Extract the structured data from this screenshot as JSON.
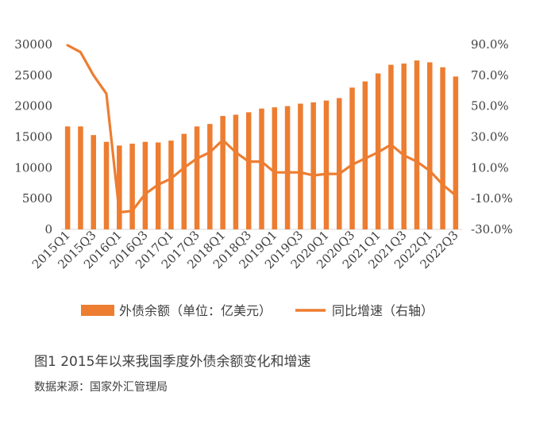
{
  "chart_data": {
    "type": "bar",
    "categories": [
      "2015Q1",
      "2015Q2",
      "2015Q3",
      "2015Q4",
      "2016Q1",
      "2016Q2",
      "2016Q3",
      "2016Q4",
      "2017Q1",
      "2017Q2",
      "2017Q3",
      "2017Q4",
      "2018Q1",
      "2018Q2",
      "2018Q3",
      "2018Q4",
      "2019Q1",
      "2019Q2",
      "2019Q3",
      "2019Q4",
      "2020Q1",
      "2020Q2",
      "2020Q3",
      "2020Q4",
      "2021Q1",
      "2021Q2",
      "2021Q3",
      "2021Q4",
      "2022Q1",
      "2022Q2",
      "2022Q3"
    ],
    "x_tick_labels": [
      "2015Q1",
      "2015Q3",
      "2016Q1",
      "2016Q3",
      "2017Q1",
      "2017Q3",
      "2018Q1",
      "2018Q3",
      "2019Q1",
      "2019Q3",
      "2020Q1",
      "2020Q3",
      "2021Q1",
      "2021Q3",
      "2022Q1",
      "2022Q3"
    ],
    "series": [
      {
        "name": "外债余额（单位：亿美元）",
        "type": "bar",
        "axis": "left",
        "color": "#ED7D31",
        "values": [
          16700,
          16700,
          15300,
          14200,
          13600,
          13900,
          14200,
          14100,
          14400,
          15500,
          16700,
          17100,
          18400,
          18600,
          19000,
          19600,
          19800,
          20000,
          20400,
          20600,
          20900,
          21300,
          23000,
          24000,
          25300,
          26700,
          26900,
          27400,
          27100,
          26300,
          24800
        ]
      },
      {
        "name": "同比增速（右轴）",
        "type": "line",
        "axis": "right",
        "color": "#ED7D31",
        "values": [
          89.5,
          85.0,
          70.0,
          58.0,
          -19.0,
          -18.0,
          -7.0,
          -1.0,
          3.0,
          10.0,
          16.0,
          20.0,
          28.0,
          20.0,
          14.0,
          14.0,
          7.0,
          7.0,
          7.0,
          5.0,
          6.0,
          6.0,
          12.0,
          16.0,
          20.0,
          25.0,
          18.0,
          14.0,
          8.0,
          -1.0,
          -8.0
        ]
      }
    ],
    "y_left": {
      "ticks": [
        "0",
        "5000",
        "10000",
        "15000",
        "20000",
        "25000",
        "30000"
      ],
      "ylim": [
        0,
        30000
      ]
    },
    "y_right": {
      "ticks": [
        "-30.0%",
        "-10.0%",
        "10.0%",
        "30.0%",
        "50.0%",
        "70.0%",
        "90.0%"
      ],
      "ylim": [
        -30,
        90
      ]
    },
    "grid": false,
    "legend_position": "bottom"
  },
  "caption": "图1   2015年以来我国季度外债余额变化和增速",
  "source": "数据来源：国家外汇管理局"
}
